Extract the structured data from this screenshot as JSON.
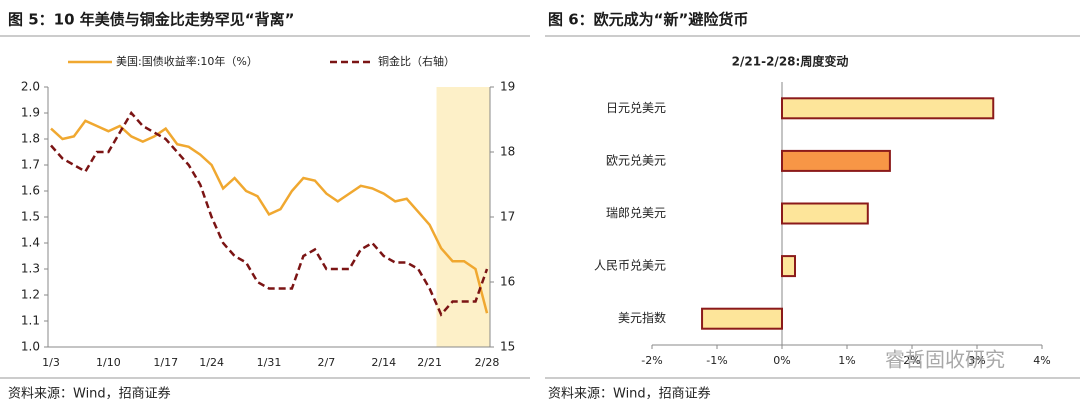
{
  "chart_data": [
    {
      "type": "line",
      "title": "图 5：10 年美债与铜金比走势罕见“背离”",
      "source": "资料来源：Wind，招商证券",
      "categories": [
        "1/3",
        null,
        null,
        null,
        null,
        "1/10",
        null,
        null,
        null,
        null,
        "1/17",
        null,
        null,
        null,
        "1/24",
        null,
        null,
        null,
        null,
        "1/31",
        null,
        null,
        null,
        null,
        "2/7",
        null,
        null,
        null,
        null,
        "2/14",
        null,
        null,
        null,
        "2/21",
        null,
        null,
        null,
        null,
        "2/28"
      ],
      "series": [
        {
          "name": "美国:国债收益率:10年（%）",
          "color": "#f0a830",
          "dash": false,
          "values": [
            1.84,
            1.8,
            1.81,
            1.87,
            1.85,
            1.83,
            1.85,
            1.81,
            1.79,
            1.81,
            1.84,
            1.78,
            1.77,
            1.74,
            1.7,
            1.61,
            1.65,
            1.6,
            1.58,
            1.51,
            1.53,
            1.6,
            1.65,
            1.64,
            1.59,
            1.56,
            1.59,
            1.62,
            1.61,
            1.59,
            1.56,
            1.57,
            1.52,
            1.47,
            1.38,
            1.33,
            1.33,
            1.3,
            1.13
          ]
        },
        {
          "name": "铜金比（右轴）",
          "color": "#7b1414",
          "dash": true,
          "axis": "y2",
          "values": [
            18.1,
            17.9,
            17.8,
            17.7,
            18.0,
            18.0,
            18.3,
            18.6,
            18.4,
            18.3,
            18.2,
            18.0,
            17.8,
            17.5,
            17.0,
            16.6,
            16.4,
            16.3,
            16.0,
            15.9,
            15.9,
            15.9,
            16.4,
            16.5,
            16.2,
            16.2,
            16.2,
            16.5,
            16.6,
            16.4,
            16.3,
            16.3,
            16.2,
            15.9,
            15.5,
            15.7,
            15.7,
            15.7,
            16.2
          ]
        }
      ],
      "ylim": [
        1.0,
        2.0
      ],
      "yticks": [
        {
          "value": 1.0,
          "label": "1.0"
        },
        1.1,
        1.2,
        1.3,
        1.4,
        1.5,
        1.6,
        1.7,
        1.8,
        1.9,
        {
          "value": 2.0,
          "label": "2.0"
        }
      ],
      "y2lim": [
        15,
        19
      ],
      "y2ticks": [
        15,
        16,
        17,
        18,
        19
      ],
      "legend": "top"
    },
    {
      "type": "bar",
      "orientation": "horizontal",
      "title": "图 6：欧元成为“新”避险货币",
      "subtitle": "2/21-2/28:周度变动",
      "source": "资料来源：Wind，招商证券",
      "watermark": "睿哲固收研究",
      "categories": [
        "日元兑美元",
        "欧元兑美元",
        "瑞郎兑美元",
        "人民币兑美元",
        "美元指数"
      ],
      "values": [
        3.25,
        1.66,
        1.32,
        0.2,
        -1.23
      ],
      "colors": [
        "#fde59a",
        "#f79646",
        "#fde59a",
        "#fde59a",
        "#fde59a"
      ],
      "edgecolor": "#8b1a1a",
      "xlim": [
        -2,
        4
      ],
      "xticks": [
        {
          "value": -2,
          "label": "-2%"
        },
        {
          "value": -1,
          "label": "-1%"
        },
        {
          "value": 0,
          "label": "0%"
        },
        {
          "value": 1,
          "label": "1%"
        },
        {
          "value": 2,
          "label": "2%"
        },
        {
          "value": 3,
          "label": "3%"
        },
        {
          "value": 4,
          "label": "4%"
        }
      ]
    }
  ]
}
